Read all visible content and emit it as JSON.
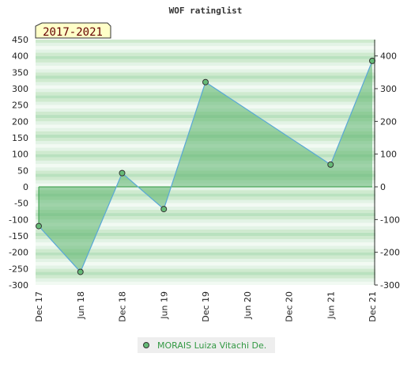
{
  "chart_data": {
    "type": "area",
    "title": "WOF ratinglist",
    "period_label": "2017-2021",
    "x_ticks": [
      "Dec 17",
      "Jun 18",
      "Dec 18",
      "Jun 19",
      "Dec 19",
      "Jun 20",
      "Dec 20",
      "Jun 21",
      "Dec 21"
    ],
    "left_axis": {
      "ylim": [
        -300,
        450
      ],
      "ticks": [
        450,
        400,
        350,
        300,
        250,
        200,
        150,
        100,
        50,
        0,
        -50,
        -100,
        -150,
        -200,
        -250,
        -300
      ]
    },
    "right_axis": {
      "ticks": [
        400,
        300,
        200,
        100,
        0,
        -100,
        -200,
        -300
      ]
    },
    "series": [
      {
        "name": "MORAIS Luiza Vitachi De.",
        "x": [
          "Dec 17",
          "Jun 18",
          "Dec 18",
          "Jun 19",
          "Dec 19",
          "Jun 21",
          "Dec 21"
        ],
        "values": [
          -120,
          -260,
          42,
          -68,
          320,
          68,
          385
        ]
      }
    ],
    "colors": {
      "line": "#5aa8d6",
      "fill": "#5bb36b",
      "marker": "#66bb77",
      "zero_line": "#339944"
    },
    "legend_position": "bottom-center",
    "grid": "horizontal-bands"
  }
}
